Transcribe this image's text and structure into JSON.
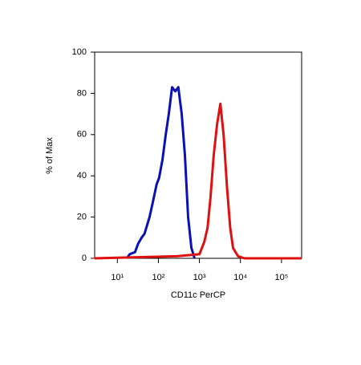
{
  "chart_data": {
    "type": "line",
    "xlabel": "CD11c PerCP",
    "ylabel": "% of Max",
    "xscale": "log",
    "xlim": [
      2.8,
      310000
    ],
    "ylim": [
      0,
      100
    ],
    "xticks": [
      {
        "value": 10,
        "label": "10¹"
      },
      {
        "value": 100,
        "label": "10²"
      },
      {
        "value": 1000,
        "label": "10³"
      },
      {
        "value": 10000,
        "label": "10⁴"
      },
      {
        "value": 100000,
        "label": "10⁵"
      }
    ],
    "yticks": [
      0,
      20,
      40,
      60,
      80,
      100
    ],
    "series": [
      {
        "color": "#0a10b8",
        "x": [
          17,
          20,
          27,
          32,
          39,
          46,
          61,
          73,
          91,
          104,
          126,
          151,
          179,
          216,
          258,
          307,
          370,
          443,
          530,
          637,
          760
        ],
        "values": [
          0,
          2,
          3,
          7,
          10,
          12,
          20,
          27,
          36,
          39,
          48,
          60,
          70,
          83,
          81,
          83,
          70,
          50,
          20,
          5,
          0
        ]
      },
      {
        "color": "#e01010",
        "x": [
          2.8,
          282,
          1000,
          1318,
          1585,
          1870,
          2230,
          2690,
          3240,
          3890,
          4680,
          5620,
          6610,
          8710,
          12600,
          310000
        ],
        "values": [
          0,
          1,
          2,
          8,
          15,
          30,
          50,
          65,
          75,
          60,
          35,
          15,
          5,
          1,
          0,
          0
        ]
      }
    ]
  }
}
